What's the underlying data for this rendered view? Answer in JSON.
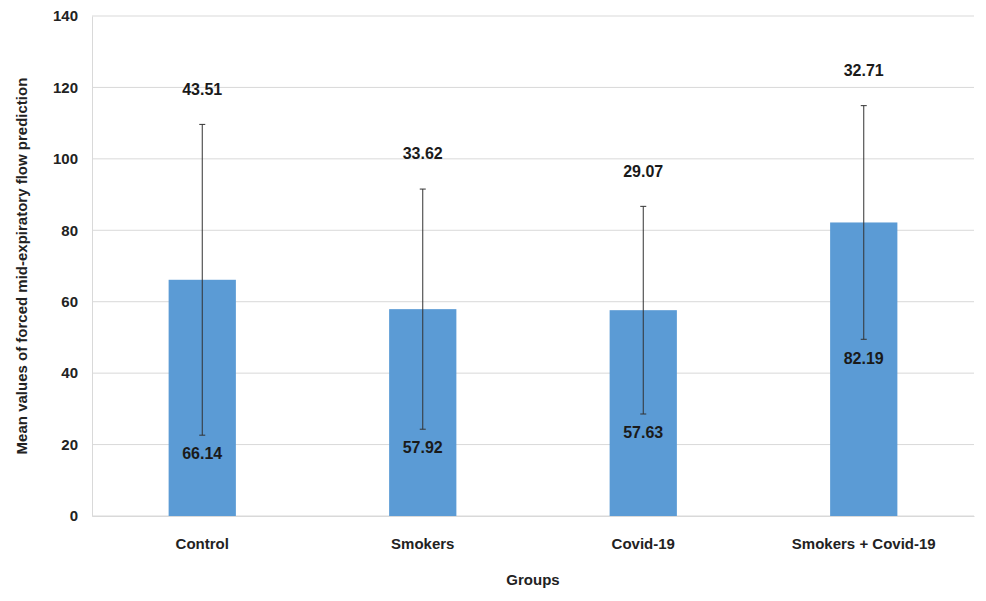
{
  "chart_data": {
    "type": "bar",
    "x_label": "Groups",
    "y_label": "Mean values of forced mid-expiratory flow prediction",
    "categories": [
      "Control",
      "Smokers",
      "Covid-19",
      "Smokers + Covid-19"
    ],
    "values": [
      66.14,
      57.92,
      57.63,
      82.19
    ],
    "errors": [
      43.51,
      33.62,
      29.07,
      32.71
    ],
    "color": "#5b9bd5",
    "ylim": [
      0,
      140
    ],
    "yticks": [
      0,
      20,
      40,
      60,
      80,
      100,
      120,
      140
    ],
    "grid": true,
    "data_labels": true
  }
}
